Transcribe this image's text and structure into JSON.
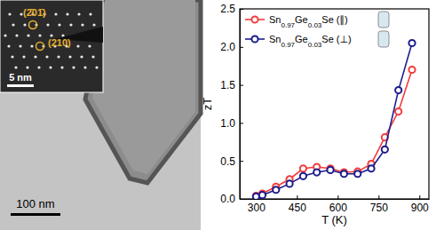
{
  "chart_data": {
    "type": "line",
    "x_label": "T (K)",
    "y_label": "zT",
    "x": [
      300,
      323,
      373,
      423,
      473,
      523,
      573,
      623,
      673,
      723,
      773,
      823,
      873
    ],
    "xlim": [
      240,
      935
    ],
    "xticks": [
      300,
      450,
      600,
      750,
      900
    ],
    "ylim": [
      0,
      2.5
    ],
    "yticks": [
      {
        "value": 0,
        "label": "0.0"
      },
      {
        "value": 0.5,
        "label": "0.5"
      },
      {
        "value": 1,
        "label": "1.0"
      },
      {
        "value": 1.5,
        "label": "1.5"
      },
      {
        "value": 2,
        "label": "2.0"
      },
      {
        "value": 2.5,
        "label": "2.5"
      }
    ],
    "legend": "upper left",
    "marker": "circle",
    "series": [
      {
        "name": "Sn0.97Ge0.03Se (∥)",
        "color": "#f23c3c",
        "values": [
          0.04,
          0.07,
          0.16,
          0.26,
          0.4,
          0.42,
          0.4,
          0.35,
          0.36,
          0.46,
          0.81,
          1.15,
          1.7
        ]
      },
      {
        "name": "Sn0.97Ge0.03Se (⊥)",
        "color": "#1c1c8c",
        "values": [
          0.03,
          0.05,
          0.12,
          0.2,
          0.3,
          0.35,
          0.38,
          0.33,
          0.33,
          0.4,
          0.65,
          1.43,
          2.05
        ]
      }
    ]
  },
  "image": {
    "scale_bar": "100 nm",
    "inset_scale_bar": "5 nm",
    "inset_labels": [
      "(2̄01̄)",
      "(210)"
    ]
  }
}
